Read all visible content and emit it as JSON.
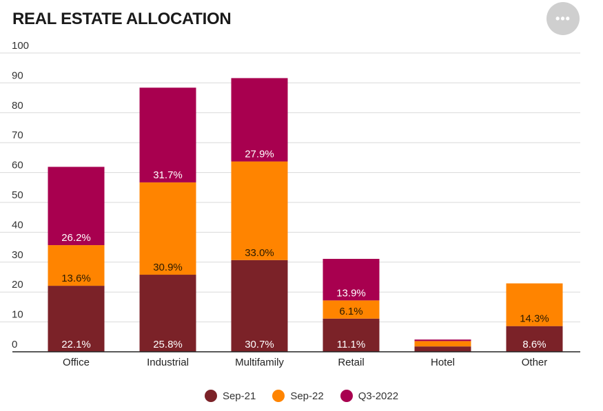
{
  "header": {
    "title": "REAL ESTATE ALLOCATION",
    "menu_icon": "more-horizontal-icon",
    "menu_glyph": "•••"
  },
  "colors": {
    "sep21": "#7b2228",
    "sep22": "#ff8400",
    "q3_2022": "#a8004f",
    "grid": "#d9d9d9",
    "axis": "#222222"
  },
  "chart_data": {
    "type": "bar",
    "stacked": true,
    "title": "REAL ESTATE ALLOCATION",
    "xlabel": "",
    "ylabel": "",
    "ylim": [
      0,
      100
    ],
    "yticks": [
      0,
      10,
      20,
      30,
      40,
      50,
      60,
      70,
      80,
      90,
      100
    ],
    "categories": [
      "Office",
      "Industrial",
      "Multifamily",
      "Retail",
      "Hotel",
      "Other"
    ],
    "series": [
      {
        "name": "Sep-21",
        "values": [
          22.1,
          25.8,
          30.7,
          11.1,
          1.8,
          8.6
        ],
        "labels": [
          "22.1%",
          "25.8%",
          "30.7%",
          "11.1%",
          "",
          "8.6%"
        ]
      },
      {
        "name": "Sep-22",
        "values": [
          13.6,
          30.9,
          33.0,
          6.1,
          1.8,
          14.3
        ],
        "labels": [
          "13.6%",
          "30.9%",
          "33.0%",
          "6.1%",
          "",
          "14.3%"
        ]
      },
      {
        "name": "Q3-2022",
        "values": [
          26.2,
          31.7,
          27.9,
          13.9,
          0.5,
          0.0
        ],
        "labels": [
          "26.2%",
          "31.7%",
          "27.9%",
          "13.9%",
          "",
          ""
        ]
      }
    ],
    "legend_position": "bottom",
    "grid": true
  },
  "legend": {
    "items": [
      {
        "label": "Sep-21"
      },
      {
        "label": "Sep-22"
      },
      {
        "label": "Q3-2022"
      }
    ]
  }
}
